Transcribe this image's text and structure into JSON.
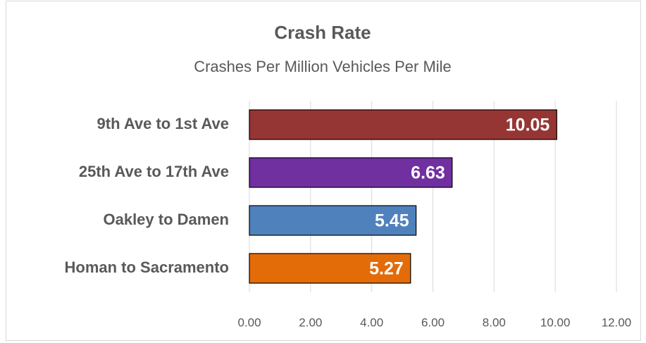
{
  "chart_data": {
    "type": "barh",
    "title": "Crash Rate",
    "subtitle": "Crashes Per Million Vehicles Per Mile",
    "categories": [
      "9th Ave to 1st Ave",
      "25th Ave to 17th Ave",
      "Oakley to Damen",
      "Homan to Sacramento"
    ],
    "values": [
      10.05,
      6.63,
      5.45,
      5.27
    ],
    "colors": [
      "#963634",
      "#7030a0",
      "#4f81bd",
      "#e36c09"
    ],
    "xlim": [
      0,
      12
    ],
    "xticks": [
      {
        "value": 0,
        "label": "0.00"
      },
      {
        "value": 2,
        "label": "2.00"
      },
      {
        "value": 4,
        "label": "4.00"
      },
      {
        "value": 6,
        "label": "6.00"
      },
      {
        "value": 8,
        "label": "8.00"
      },
      {
        "value": 10,
        "label": "10.00"
      },
      {
        "value": 12,
        "label": "12.00"
      }
    ],
    "grid": true
  }
}
